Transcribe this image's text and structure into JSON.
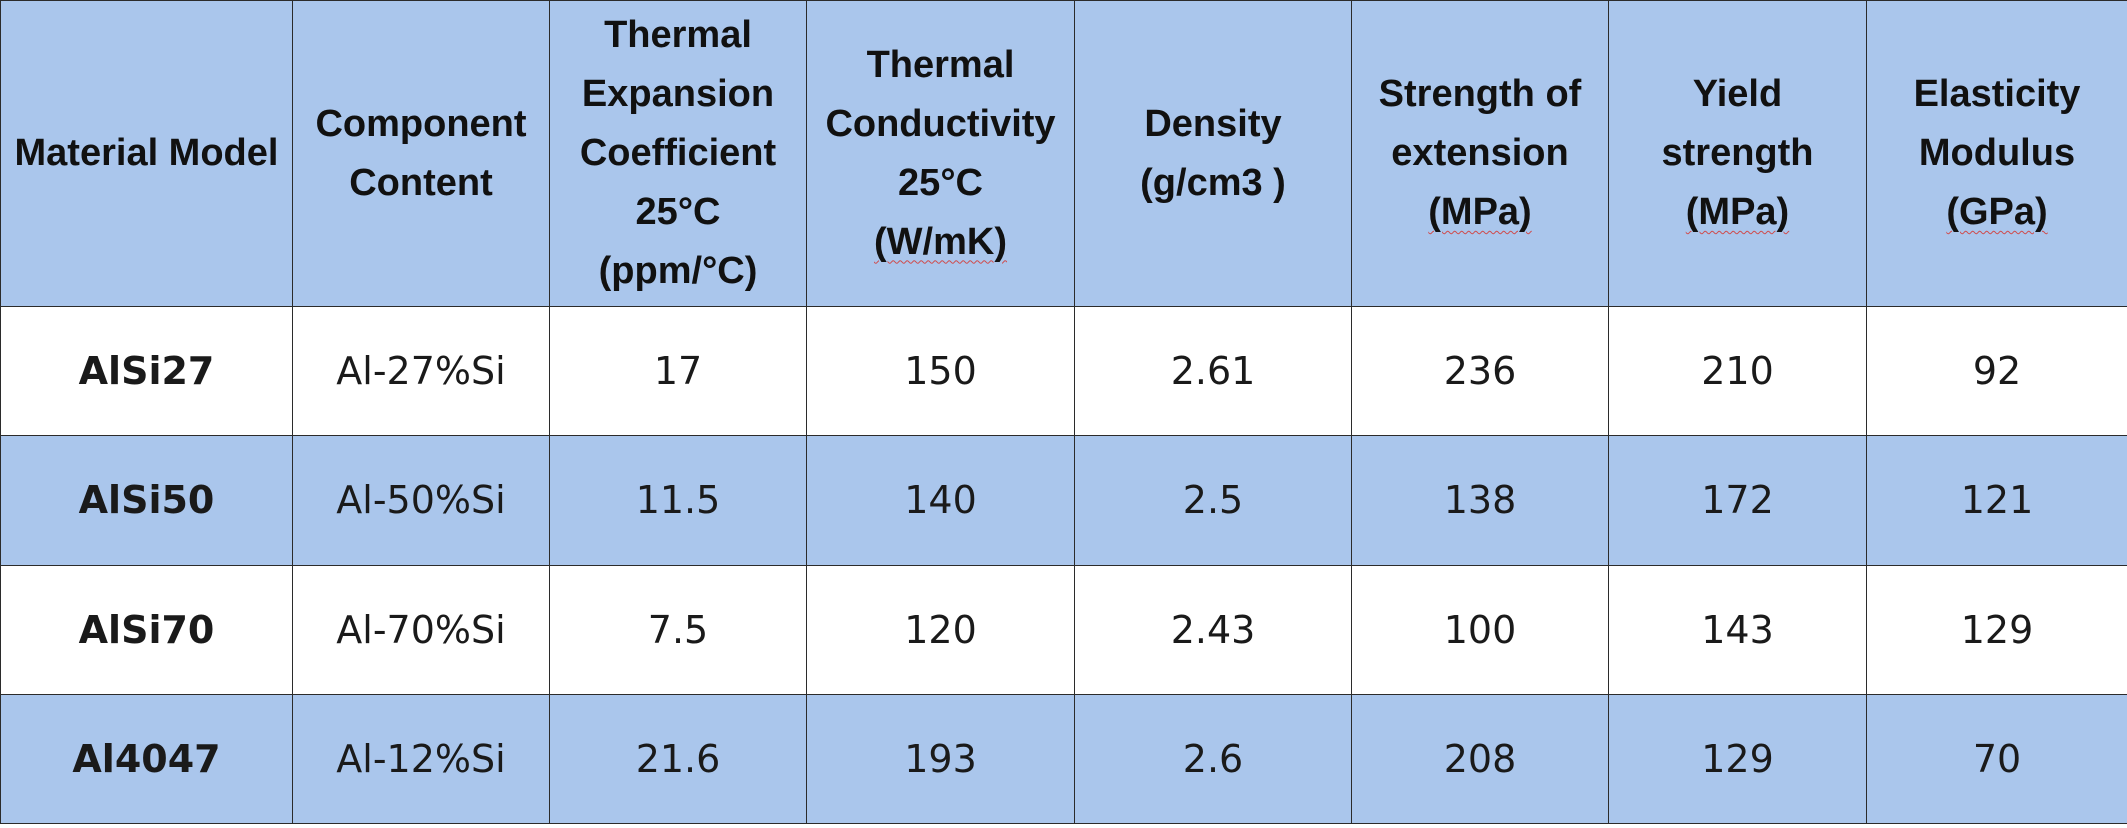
{
  "table": {
    "headers": [
      [
        "Material Model"
      ],
      [
        "Component",
        "Content"
      ],
      [
        "Thermal",
        "Expansion",
        "Coefficient",
        "25°C",
        "(ppm/°C)"
      ],
      [
        "Thermal",
        "Conductivity",
        "25°C",
        "(W/mK)"
      ],
      [
        "Density",
        "(g/cm3 )"
      ],
      [
        "Strength of",
        "extension",
        "(MPa)"
      ],
      [
        "Yield",
        "strength",
        "(MPa)"
      ],
      [
        "Elasticity",
        "Modulus",
        "(GPa)"
      ]
    ],
    "rows": [
      [
        "AlSi27",
        "Al-27%Si",
        "17",
        "150",
        "2.61",
        "236",
        "210",
        "92"
      ],
      [
        "AlSi50",
        "Al-50%Si",
        "11.5",
        "140",
        "2.5",
        "138",
        "172",
        "121"
      ],
      [
        "AlSi70",
        "Al-70%Si",
        "7.5",
        "120",
        "2.43",
        "100",
        "143",
        "129"
      ],
      [
        "Al4047",
        "Al-12%Si",
        "21.6",
        "193",
        "2.6",
        "208",
        "129",
        "70"
      ]
    ]
  },
  "colors": {
    "header_bg": "#aac6ec",
    "stripe_bg": "#aac6ec",
    "white_bg": "#ffffff",
    "border": "#2b2b2b"
  }
}
